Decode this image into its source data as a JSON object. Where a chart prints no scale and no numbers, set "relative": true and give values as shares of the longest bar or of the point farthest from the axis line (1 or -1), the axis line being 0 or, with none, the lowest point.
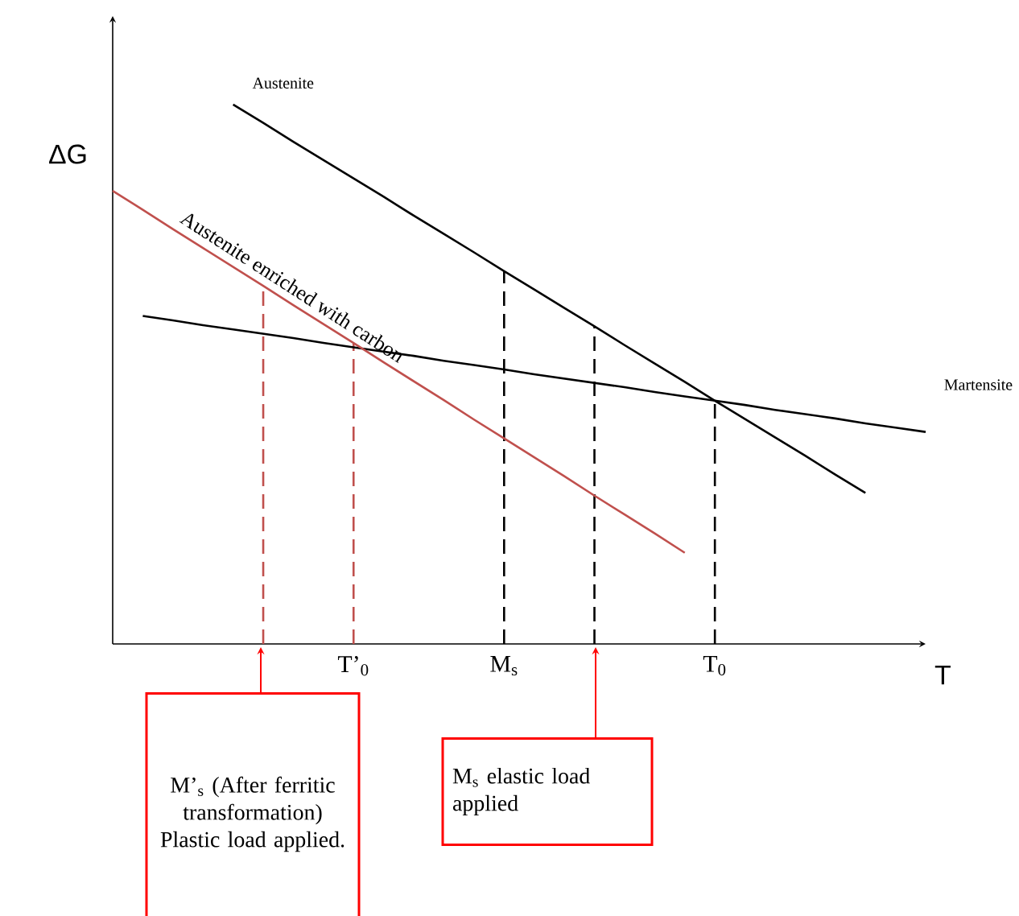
{
  "chart_data": {
    "type": "line",
    "relative": true,
    "marker": "none",
    "line_style": "solid",
    "xlabel": "T",
    "ylabel": "ΔG",
    "categories": [
      null,
      null,
      null,
      null,
      null,
      null,
      null,
      null,
      "T’$_{0}$",
      null,
      null,
      null,
      null,
      "M$_{s}$",
      null,
      null,
      null,
      null,
      null,
      null,
      "T$_{0}$",
      null,
      null,
      null,
      null,
      null,
      null,
      null
    ],
    "series": [
      {
        "name": "Austenite",
        "color": "#000000",
        "values": [
          null,
          null,
          null,
          null,
          1.0,
          0.966,
          0.931,
          0.897,
          0.863,
          0.829,
          0.794,
          0.76,
          0.726,
          0.691,
          0.657,
          0.623,
          0.589,
          0.554,
          0.52,
          0.486,
          0.451,
          0.417,
          0.383,
          0.349,
          0.314,
          0.28,
          null,
          null
        ]
      },
      {
        "name": "Martensite",
        "color": "#000000",
        "values": [
          null,
          0.608,
          0.6,
          0.591,
          0.583,
          0.575,
          0.567,
          0.558,
          0.55,
          0.542,
          0.534,
          0.525,
          0.517,
          0.509,
          0.5,
          0.492,
          0.484,
          0.476,
          0.467,
          0.459,
          0.451,
          0.443,
          0.434,
          0.426,
          0.418,
          0.409,
          0.401,
          0.393
        ]
      },
      {
        "name": "Austenite enriched with carbon",
        "color": "#c0504d",
        "values": [
          0.84,
          0.805,
          0.769,
          0.734,
          0.699,
          0.664,
          0.628,
          0.593,
          0.558,
          0.522,
          0.487,
          0.452,
          0.416,
          0.381,
          0.346,
          0.311,
          0.275,
          0.24,
          0.205,
          0.169,
          null,
          null,
          null,
          null,
          null,
          null,
          null,
          null
        ]
      }
    ],
    "ref_lines": [
      {
        "axis": "x",
        "value": "T’$_{0}$",
        "color": "#c0504d",
        "line_style": "dashed"
      },
      {
        "axis": "x",
        "value": "M$_{s}$",
        "color": "#000000",
        "line_style": "dashed"
      },
      {
        "axis": "x",
        "value": "T$_{0}$",
        "color": "#000000",
        "line_style": "dashed"
      }
    ],
    "annotations": [
      "M’$_{s}$ (After ferritic transformation) Plastic load applied.",
      "M$_{s}$ elastic load applied"
    ]
  }
}
